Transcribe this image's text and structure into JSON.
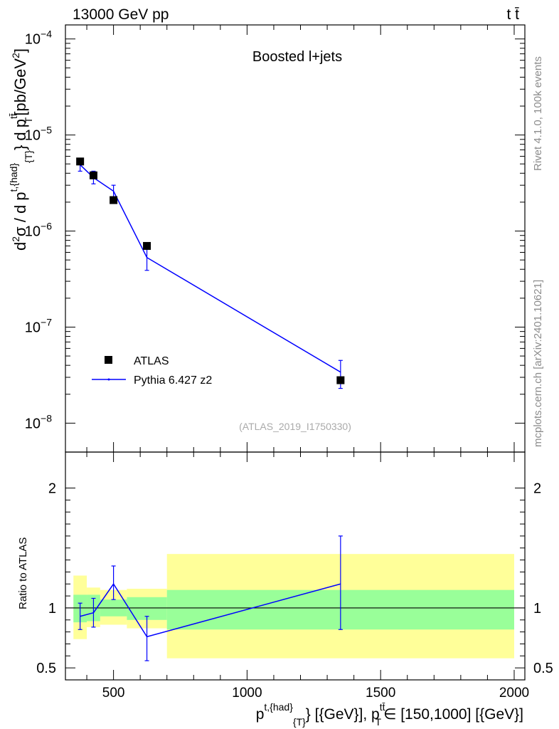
{
  "header": {
    "left": "13000 GeV pp",
    "right": "t t̄"
  },
  "side_labels": {
    "rivet": "Rivet 4.1.0,  100k events",
    "mcplots": "mcplots.cern.ch [arXiv:2401.10621]"
  },
  "chart_data": [
    {
      "type": "scatter",
      "panel": "main",
      "title": "Boosted l+jets",
      "watermark": "(ATLAS_2019_I1750330)",
      "xlabel": "p_T^{t,{had}} [{GeV}], p_T^{tt̄} ∈ [150,1000] [{GeV}]",
      "ylabel": "d²σ / d p_T^{t,{had}} d p_T^{tt̄} [pb/GeV²]",
      "xscale": "linear",
      "yscale": "log",
      "xlim": [
        320,
        2040
      ],
      "ylim": [
        5e-09,
        0.00014
      ],
      "ytick_exponents": [
        -8,
        -7,
        -6,
        -5,
        -4
      ],
      "legend_placement": "lower-left",
      "series": [
        {
          "name": "ATLAS",
          "marker": "square",
          "color": "#000000",
          "x": [
            375,
            425,
            500,
            625,
            1350
          ],
          "y": [
            5.3e-06,
            3.8e-06,
            2.1e-06,
            7e-07,
            2.8e-08
          ]
        },
        {
          "name": "Pythia 6.427 z2",
          "marker": "line",
          "color": "#0000ff",
          "x": [
            375,
            425,
            500,
            625,
            1350
          ],
          "y": [
            4.9e-06,
            3.6e-06,
            2.6e-06,
            5.3e-07,
            3.4e-08
          ],
          "yerr_low": [
            4.2e-06,
            3.1e-06,
            2.2e-06,
            3.9e-07,
            2.3e-08
          ],
          "yerr_high": [
            5.6e-06,
            4.2e-06,
            3e-06,
            6.7e-07,
            4.5e-08
          ]
        }
      ]
    },
    {
      "type": "line",
      "panel": "ratio",
      "ylabel": "Ratio to ATLAS",
      "xlabel_ticks": [
        "500",
        "1000",
        "1500",
        "2000"
      ],
      "x_ticks": [
        500,
        1000,
        1500,
        2000
      ],
      "xlim": [
        320,
        2040
      ],
      "ylim": [
        0.4,
        2.3
      ],
      "y_ticks": [
        0.5,
        1,
        2
      ],
      "y_tick_labels": [
        "0.5",
        "1",
        "2"
      ],
      "reference_line": 1,
      "bands": {
        "edges": [
          350,
          400,
          450,
          550,
          700,
          2000
        ],
        "stat_low": [
          0.88,
          0.89,
          0.93,
          0.9,
          0.82
        ],
        "stat_high": [
          1.11,
          1.11,
          1.07,
          1.09,
          1.15
        ],
        "total_low": [
          0.74,
          0.84,
          0.86,
          0.83,
          0.58
        ],
        "total_high": [
          1.27,
          1.17,
          1.15,
          1.16,
          1.45
        ],
        "stat_color": "#99ff99",
        "total_color": "#ffff99"
      },
      "series": [
        {
          "name": "Pythia 6.427 z2",
          "color": "#0000ff",
          "x": [
            375,
            425,
            500,
            625,
            1350
          ],
          "y": [
            0.93,
            0.96,
            1.2,
            0.76,
            1.2
          ],
          "yerr_low": [
            0.82,
            0.84,
            1.07,
            0.56,
            0.82
          ],
          "yerr_high": [
            1.04,
            1.08,
            1.35,
            0.93,
            1.6
          ]
        }
      ]
    }
  ]
}
